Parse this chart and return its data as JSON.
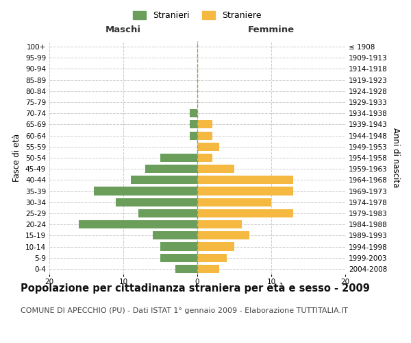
{
  "age_groups": [
    "0-4",
    "5-9",
    "10-14",
    "15-19",
    "20-24",
    "25-29",
    "30-34",
    "35-39",
    "40-44",
    "45-49",
    "50-54",
    "55-59",
    "60-64",
    "65-69",
    "70-74",
    "75-79",
    "80-84",
    "85-89",
    "90-94",
    "95-99",
    "100+"
  ],
  "birth_years": [
    "2004-2008",
    "1999-2003",
    "1994-1998",
    "1989-1993",
    "1984-1988",
    "1979-1983",
    "1974-1978",
    "1969-1973",
    "1964-1968",
    "1959-1963",
    "1954-1958",
    "1949-1953",
    "1944-1948",
    "1939-1943",
    "1934-1938",
    "1929-1933",
    "1924-1928",
    "1919-1923",
    "1914-1918",
    "1909-1913",
    "≤ 1908"
  ],
  "males": [
    3,
    5,
    5,
    6,
    16,
    8,
    11,
    14,
    9,
    7,
    5,
    0,
    1,
    1,
    1,
    0,
    0,
    0,
    0,
    0,
    0
  ],
  "females": [
    3,
    4,
    5,
    7,
    6,
    13,
    10,
    13,
    13,
    5,
    2,
    3,
    2,
    2,
    0,
    0,
    0,
    0,
    0,
    0,
    0
  ],
  "male_color": "#6a9e5a",
  "female_color": "#f5b942",
  "background_color": "#ffffff",
  "grid_color": "#cccccc",
  "title": "Popolazione per cittadinanza straniera per età e sesso - 2009",
  "subtitle": "COMUNE DI APECCHIO (PU) - Dati ISTAT 1° gennaio 2009 - Elaborazione TUTTITALIA.IT",
  "ylabel_left": "Fasce di età",
  "ylabel_right": "Anni di nascita",
  "legend_male": "Stranieri",
  "legend_female": "Straniere",
  "header_left": "Maschi",
  "header_right": "Femmine",
  "xlim": 20,
  "title_fontsize": 10.5,
  "subtitle_fontsize": 8,
  "tick_fontsize": 7.5,
  "label_fontsize": 8.5
}
